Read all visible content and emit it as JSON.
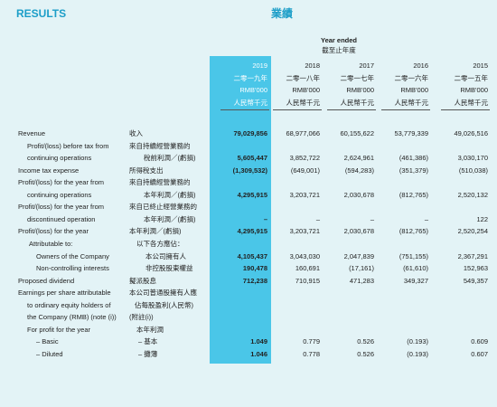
{
  "header": {
    "title_en": "RESULTS",
    "title_zh": "業績"
  },
  "table": {
    "period_en": "Year ended",
    "period_zh": "截至止年度",
    "columns": [
      {
        "year": "2019",
        "year_zh": "二零一九年",
        "unit_en": "RMB'000",
        "unit_zh": "人民幣千元"
      },
      {
        "year": "2018",
        "year_zh": "二零一八年",
        "unit_en": "RMB'000",
        "unit_zh": "人民幣千元"
      },
      {
        "year": "2017",
        "year_zh": "二零一七年",
        "unit_en": "RMB'000",
        "unit_zh": "人民幣千元"
      },
      {
        "year": "2016",
        "year_zh": "二零一六年",
        "unit_en": "RMB'000",
        "unit_zh": "人民幣千元"
      },
      {
        "year": "2015",
        "year_zh": "二零一五年",
        "unit_en": "RMB'000",
        "unit_zh": "人民幣千元"
      }
    ],
    "rows": [
      {
        "en": "Revenue",
        "zh": "收入",
        "values": [
          "79,029,856",
          "68,977,066",
          "60,155,622",
          "53,779,339",
          "49,026,516"
        ]
      },
      {
        "en": "Profit/(loss) before tax from",
        "zh": "來自持續經營業務的"
      },
      {
        "en": "continuing operations",
        "zh": "稅前利潤／(虧損)",
        "values": [
          "5,605,447",
          "3,852,722",
          "2,624,961",
          "(461,386)",
          "3,030,170"
        ]
      },
      {
        "en": "Income tax expense",
        "zh": "所得稅支出",
        "values": [
          "(1,309,532)",
          "(649,001)",
          "(594,283)",
          "(351,379)",
          "(510,038)"
        ]
      },
      {
        "en": "Profit/(loss) for the year from",
        "zh": "來自持續經營業務的"
      },
      {
        "en": "continuing operations",
        "zh": "本年利潤／(虧損)",
        "values": [
          "4,295,915",
          "3,203,721",
          "2,030,678",
          "(812,765)",
          "2,520,132"
        ]
      },
      {
        "en": "Profit/(loss) for the year from",
        "zh": "來自已終止經營業務的"
      },
      {
        "en": "discontinued operation",
        "zh": "本年利潤／(虧損)",
        "values": [
          "–",
          "–",
          "–",
          "–",
          "122"
        ]
      },
      {
        "en": "Profit/(loss) for the year",
        "zh": "本年利潤／(虧損)",
        "values": [
          "4,295,915",
          "3,203,721",
          "2,030,678",
          "(812,765)",
          "2,520,254"
        ]
      },
      {
        "en": "Attributable to:",
        "zh": "以下各方應佔："
      },
      {
        "en": "Owners of the Company",
        "zh": "本公司擁有人",
        "values": [
          "4,105,437",
          "3,043,030",
          "2,047,839",
          "(751,155)",
          "2,367,291"
        ]
      },
      {
        "en": "Non-controlling interests",
        "zh": "非控股股東權益",
        "values": [
          "190,478",
          "160,691",
          "(17,161)",
          "(61,610)",
          "152,963"
        ]
      },
      {
        "en": "Proposed dividend",
        "zh": "擬派股息",
        "values": [
          "712,238",
          "710,915",
          "471,283",
          "349,327",
          "549,357"
        ]
      },
      {
        "en": "Earnings per share attributable",
        "zh": "本公司普通股擁有人應"
      },
      {
        "en": "to ordinary equity holders of",
        "zh": "佔每股盈利(人民幣)"
      },
      {
        "en": "the Company (RMB) (note (i))",
        "zh": "(附註(i))"
      },
      {
        "en": "For profit for the year",
        "zh": "本年利潤"
      },
      {
        "en": "– Basic",
        "zh": "– 基本",
        "values": [
          "1.049",
          "0.779",
          "0.526",
          "(0.193)",
          "0.609"
        ]
      },
      {
        "en": "– Diluted",
        "zh": "– 攤薄",
        "values": [
          "1.046",
          "0.778",
          "0.526",
          "(0.193)",
          "0.607"
        ]
      }
    ]
  }
}
